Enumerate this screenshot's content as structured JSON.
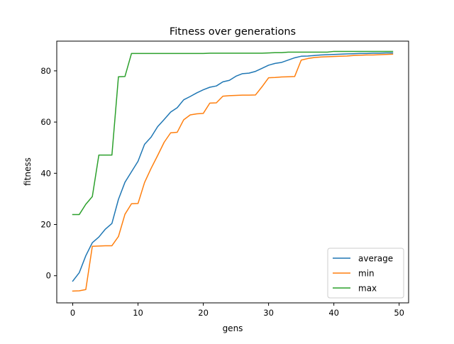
{
  "chart_data": {
    "type": "line",
    "title": "Fitness over generations",
    "xlabel": "gens",
    "ylabel": "fitness",
    "xlim": [
      -2.45,
      51.45
    ],
    "ylim": [
      -10.6,
      91.6
    ],
    "xticks": [
      0,
      10,
      20,
      30,
      40,
      50
    ],
    "yticks": [
      0,
      20,
      40,
      60,
      80
    ],
    "grid": false,
    "legend_position": "lower-right",
    "x": [
      0,
      1,
      2,
      3,
      4,
      5,
      6,
      7,
      8,
      9,
      10,
      11,
      12,
      13,
      14,
      15,
      16,
      17,
      18,
      19,
      20,
      21,
      22,
      23,
      24,
      25,
      26,
      27,
      28,
      29,
      30,
      31,
      32,
      33,
      34,
      35,
      36,
      37,
      38,
      39,
      40,
      41,
      42,
      43,
      44,
      45,
      46,
      47,
      48,
      49
    ],
    "series": [
      {
        "name": "average",
        "color": "#1f77b4",
        "values": [
          -2.1,
          1.2,
          7.8,
          12.9,
          15.1,
          18.2,
          20.4,
          29.8,
          36.5,
          40.6,
          44.7,
          51.3,
          54.1,
          58.2,
          61.0,
          63.9,
          65.6,
          68.7,
          70.0,
          71.4,
          72.6,
          73.6,
          74.1,
          75.7,
          76.3,
          77.9,
          78.9,
          79.1,
          79.8,
          81.0,
          82.2,
          82.9,
          83.3,
          84.2,
          85.1,
          85.7,
          85.8,
          86.0,
          86.2,
          86.3,
          86.4,
          86.5,
          86.6,
          86.7,
          86.8,
          86.8,
          86.9,
          86.9,
          87.0,
          87.0
        ]
      },
      {
        "name": "min",
        "color": "#ff7f0e",
        "values": [
          -6.0,
          -5.9,
          -5.4,
          11.5,
          11.6,
          11.7,
          11.7,
          15.3,
          24.0,
          28.1,
          28.2,
          36.4,
          41.9,
          46.9,
          52.1,
          55.8,
          56.0,
          60.9,
          62.8,
          63.2,
          63.4,
          67.4,
          67.5,
          70.1,
          70.3,
          70.4,
          70.5,
          70.5,
          70.6,
          73.8,
          77.3,
          77.4,
          77.6,
          77.7,
          77.8,
          84.2,
          84.8,
          85.2,
          85.4,
          85.5,
          85.6,
          85.7,
          85.8,
          86.0,
          86.1,
          86.2,
          86.2,
          86.3,
          86.4,
          86.5
        ]
      },
      {
        "name": "max",
        "color": "#2ca02c",
        "values": [
          23.9,
          23.9,
          27.9,
          30.9,
          47.1,
          47.1,
          47.1,
          77.7,
          77.8,
          86.8,
          86.8,
          86.8,
          86.8,
          86.8,
          86.8,
          86.8,
          86.8,
          86.8,
          86.8,
          86.8,
          86.8,
          86.9,
          86.9,
          86.9,
          86.9,
          86.9,
          86.9,
          86.9,
          86.9,
          86.9,
          87.0,
          87.1,
          87.1,
          87.3,
          87.3,
          87.3,
          87.3,
          87.3,
          87.3,
          87.3,
          87.6,
          87.6,
          87.6,
          87.6,
          87.6,
          87.6,
          87.6,
          87.6,
          87.6,
          87.6
        ]
      }
    ]
  }
}
